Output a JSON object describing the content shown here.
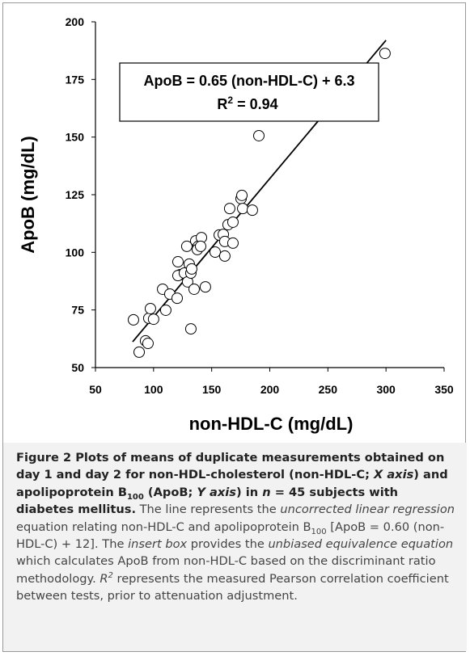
{
  "chart_data": {
    "type": "scatter",
    "xlabel": "non-HDL-C (mg/dL)",
    "ylabel": "ApoB (mg/dL)",
    "xlim": [
      50,
      350
    ],
    "xticks": [
      50,
      100,
      150,
      200,
      250,
      300,
      350
    ],
    "ylim": [
      50,
      200
    ],
    "yticks": [
      50,
      75,
      100,
      125,
      150,
      175,
      200
    ],
    "marker_color": "#000000",
    "line_color": "#000000",
    "x": [
      82.7,
      87.6,
      93.1,
      95.2,
      95.9,
      97.3,
      100,
      107.8,
      110.5,
      114,
      120.3,
      121,
      123,
      121,
      126.5,
      128.6,
      129.3,
      130.7,
      132.1,
      132.8,
      132.1,
      134.9,
      136.3,
      138.4,
      137.7,
      141.2,
      140.5,
      144.6,
      153,
      156.5,
      160,
      161.3,
      161.3,
      164.1,
      165.5,
      168.3,
      168.3,
      175.3,
      176,
      176.7,
      185,
      190.6,
      299.1
    ],
    "values": [
      70.7,
      56.7,
      61.6,
      60.5,
      71.4,
      75.6,
      71,
      84,
      74.9,
      81.9,
      80.1,
      95.9,
      90.3,
      89.9,
      91,
      102.6,
      87.2,
      94.9,
      91,
      92.8,
      66.8,
      84,
      105,
      102.6,
      101.2,
      106.4,
      102.6,
      85,
      100.1,
      107.5,
      107.8,
      98.4,
      104.7,
      112,
      119,
      104,
      113.1,
      123.3,
      124.7,
      119,
      118.3,
      150.6,
      186.3
    ],
    "fit_line": {
      "x": [
        82,
        300
      ],
      "values": [
        61.2,
        192
      ]
    },
    "annotation": {
      "equation": "ApoB = 0.65 (non-HDL-C) + 6.3",
      "r_base": "R",
      "r_sup": "2",
      "r_rest": " = 0.94"
    }
  },
  "caption": [
    {
      "style": "b",
      "text": "Figure 2 Plots of means of duplicate measurements obtained on day 1 and day 2 for non-HDL-cholesterol (non-HDL-C; "
    },
    {
      "style": "bi",
      "text": "X axis"
    },
    {
      "style": "b",
      "text": ") and apolipoprotein B"
    },
    {
      "style": "bsub",
      "text": "100"
    },
    {
      "style": "b",
      "text": " (ApoB; "
    },
    {
      "style": "bi",
      "text": "Y axis"
    },
    {
      "style": "b",
      "text": ") in "
    },
    {
      "style": "bi",
      "text": "n"
    },
    {
      "style": "b",
      "text": " = 45 subjects with diabetes mellitus."
    },
    {
      "style": "n",
      "text": " The line represents the "
    },
    {
      "style": "i",
      "text": "uncorrected linear regression"
    },
    {
      "style": "n",
      "text": " equation relating non-HDL-C and apolipoprotein B"
    },
    {
      "style": "sub",
      "text": "100"
    },
    {
      "style": "n",
      "text": " [ApoB = 0.60 (non-HDL-C) + 12]. The "
    },
    {
      "style": "i",
      "text": "insert box"
    },
    {
      "style": "n",
      "text": " provides the "
    },
    {
      "style": "i",
      "text": "unbiased equivalence equation"
    },
    {
      "style": "n",
      "text": " which calculates ApoB from non-HDL-C based on the discriminant ratio methodology. "
    },
    {
      "style": "i",
      "text": "R"
    },
    {
      "style": "isup",
      "text": "2"
    },
    {
      "style": "n",
      "text": " represents the measured Pearson correlation coefficient between tests, prior to attenuation adjustment."
    }
  ]
}
